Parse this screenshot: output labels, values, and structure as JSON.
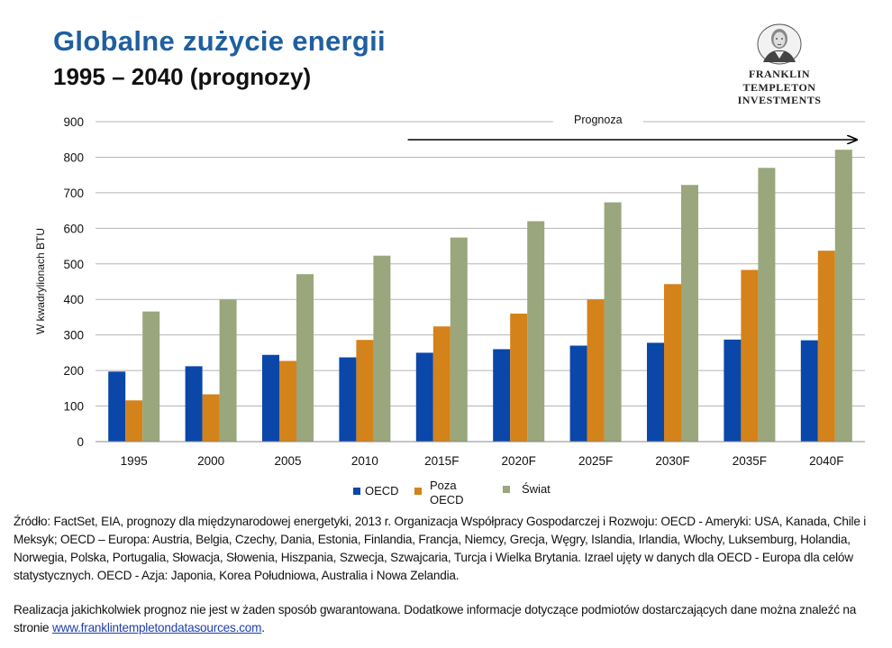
{
  "header": {
    "title": "Globalne zużycie energii",
    "subtitle": "1995 – 2040 (prognozy)"
  },
  "logo": {
    "line1": "FRANKLIN TEMPLETON",
    "line2": "INVESTMENTS"
  },
  "chart_data": {
    "type": "bar",
    "title": "",
    "ylabel": "W kwadrylionach BTU",
    "xlabel": "",
    "ylim": [
      0,
      900
    ],
    "yticks": [
      0,
      100,
      200,
      300,
      400,
      500,
      600,
      700,
      800,
      900
    ],
    "categories": [
      "1995",
      "2000",
      "2005",
      "2010",
      "2015F",
      "2020F",
      "2025F",
      "2030F",
      "2035F",
      "2040F"
    ],
    "series": [
      {
        "name": "OECD",
        "color": "#0a47a8",
        "values": [
          197,
          212,
          244,
          237,
          250,
          260,
          270,
          278,
          287,
          285
        ]
      },
      {
        "name": "Poza OECD",
        "color": "#d4821a",
        "values": [
          116,
          133,
          227,
          286,
          324,
          360,
          400,
          443,
          483,
          537
        ]
      },
      {
        "name": "Świat",
        "color": "#9aa67b",
        "values": [
          366,
          400,
          471,
          523,
          574,
          620,
          673,
          722,
          770,
          821
        ]
      }
    ],
    "legend_labels": {
      "oecd": "OECD",
      "poza_line1": "Poza",
      "poza_line2": "OECD",
      "swiat": "Świat"
    },
    "annotation": {
      "text": "Prognoza",
      "start_category": "2015F",
      "end_category": "2040F"
    },
    "grid": true,
    "legend_position": "bottom-center"
  },
  "footer": {
    "source": "Źródło: FactSet, EIA, prognozy dla międzynarodowej energetyki, 2013 r. Organizacja Współpracy Gospodarczej i Rozwoju: OECD - Ameryki: USA, Kanada, Chile i Meksyk; OECD – Europa: Austria, Belgia, Czechy, Dania, Estonia, Finlandia, Francja, Niemcy, Grecja, Węgry, Islandia, Irlandia, Włochy, Luksemburg, Holandia, Norwegia, Polska, Portugalia, Słowacja, Słowenia, Hiszpania, Szwecja, Szwajcaria, Turcja i Wielka Brytania. Izrael ujęty w danych dla OECD - Europa dla celów statystycznych. OECD - Azja: Japonia, Korea Południowa, Australia i Nowa Zelandia.",
    "disclaimer_text": "Realizacja jakichkolwiek prognoz nie jest w żaden sposób gwarantowana.  Dodatkowe informacje dotyczące podmiotów dostarczających dane można znaleźć na stronie ",
    "link_text": "www.franklintempletondatasources.com",
    "link_suffix": "."
  }
}
